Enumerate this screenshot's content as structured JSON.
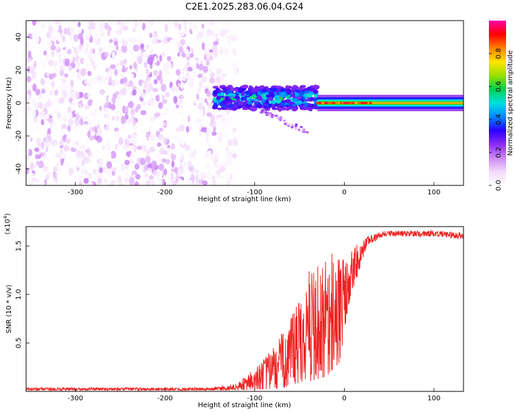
{
  "title": "C2E1.2025.283.06.04.G24",
  "chart_data": [
    {
      "type": "heatmap",
      "xlabel": "Height of straight line (km)",
      "ylabel": "Frequency (Hz)",
      "xlim": [
        -355,
        133
      ],
      "ylim": [
        -50,
        50
      ],
      "xticks": [
        -300,
        -200,
        -100,
        0,
        100
      ],
      "yticks": [
        -40,
        -20,
        0,
        20,
        40
      ],
      "colorbar": {
        "label": "Normalized spectral amplitude",
        "range": [
          0,
          1
        ],
        "ticks": [
          "0.0",
          "0.2",
          "0.4",
          "0.6",
          "0.8"
        ],
        "colors": [
          "#ffffff",
          "#f2d9fb",
          "#cc88f5",
          "#8b2cf0",
          "#2a00ff",
          "#0088ff",
          "#00e0e0",
          "#00d050",
          "#9adf00",
          "#ffe400",
          "#ff8000",
          "#ff0000",
          "#ff00aa"
        ]
      },
      "regions": [
        {
          "name": "noise",
          "x": [
            -355,
            -128
          ],
          "freq_range": [
            -50,
            50
          ],
          "amplitude": [
            0.0,
            0.18
          ]
        },
        {
          "name": "turbulent-band",
          "x": [
            -145,
            -30
          ],
          "freq_center": 3,
          "freq_halfwidth": 7,
          "amplitude": [
            0.25,
            0.65
          ]
        },
        {
          "name": "tail-echo",
          "x": [
            -95,
            -40
          ],
          "freq_center": -12,
          "amplitude": [
            0.1,
            0.25
          ]
        },
        {
          "name": "stable-line",
          "x": [
            -30,
            133
          ],
          "freq_center": 0,
          "freq_halfwidth": 5,
          "amplitude": [
            0.3,
            0.95
          ]
        }
      ]
    },
    {
      "type": "line",
      "xlabel": "Height of straight line (km)",
      "ylabel": "SNR (10 * v/v)",
      "yscale_label": "(x10",
      "yscale_exponent": "4",
      "yscale_suffix": ")",
      "xlim": [
        -355,
        133
      ],
      "ylim": [
        0,
        1.7
      ],
      "xticks": [
        -300,
        -200,
        -100,
        0,
        100
      ],
      "yticks": [
        0.5,
        1.0,
        1.5
      ],
      "ytick_labels": [
        "0.5",
        "1.0",
        "1.5"
      ],
      "color": "#ee2222",
      "series": [
        {
          "name": "SNR",
          "envelope": [
            {
              "x": -355,
              "low": 0.01,
              "high": 0.04
            },
            {
              "x": -150,
              "low": 0.01,
              "high": 0.04
            },
            {
              "x": -120,
              "low": 0.01,
              "high": 0.08
            },
            {
              "x": -100,
              "low": 0.02,
              "high": 0.25
            },
            {
              "x": -80,
              "low": 0.02,
              "high": 0.45
            },
            {
              "x": -60,
              "low": 0.05,
              "high": 0.75
            },
            {
              "x": -40,
              "low": 0.1,
              "high": 1.25
            },
            {
              "x": -20,
              "low": 0.15,
              "high": 1.45
            },
            {
              "x": -5,
              "low": 0.3,
              "high": 1.4
            },
            {
              "x": 5,
              "low": 0.9,
              "high": 1.45
            },
            {
              "x": 15,
              "low": 1.2,
              "high": 1.52
            },
            {
              "x": 25,
              "low": 1.5,
              "high": 1.6
            },
            {
              "x": 45,
              "low": 1.6,
              "high": 1.66
            },
            {
              "x": 100,
              "low": 1.6,
              "high": 1.66
            },
            {
              "x": 133,
              "low": 1.57,
              "high": 1.64
            }
          ]
        }
      ]
    }
  ]
}
